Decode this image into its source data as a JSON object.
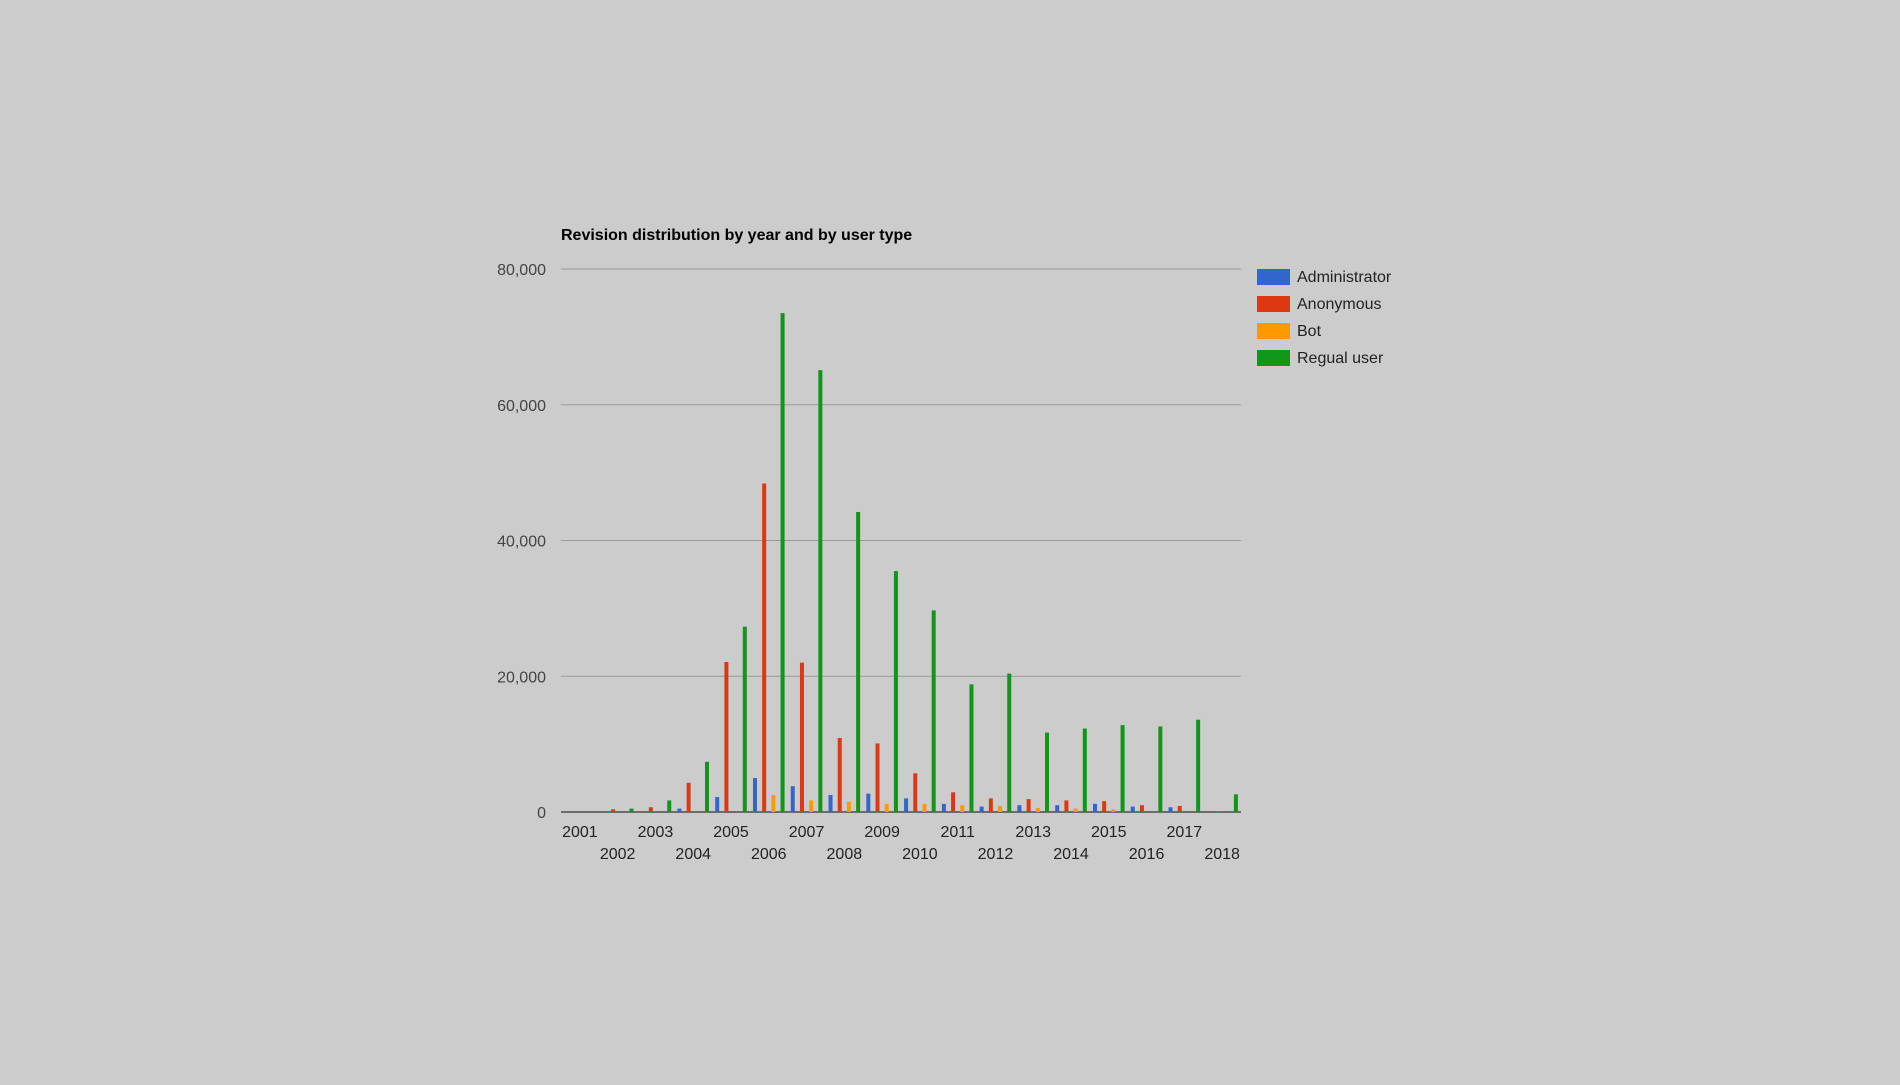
{
  "chart_data": {
    "type": "bar",
    "title": "Revision distribution by year and by user type",
    "xlabel": "",
    "ylabel": "",
    "ylim": [
      0,
      80000
    ],
    "yticks": [
      "0",
      "20,000",
      "40,000",
      "60,000",
      "80,000"
    ],
    "grid": true,
    "legend_position": "right",
    "categories": [
      "2001",
      "2002",
      "2003",
      "2004",
      "2005",
      "2006",
      "2007",
      "2008",
      "2009",
      "2010",
      "2011",
      "2012",
      "2013",
      "2014",
      "2015",
      "2016",
      "2017",
      "2018"
    ],
    "series": [
      {
        "name": "Administrator",
        "color": "#3366cc",
        "values": [
          0,
          0,
          0,
          500,
          2200,
          5000,
          3800,
          2500,
          2700,
          2000,
          1200,
          800,
          1000,
          1000,
          1200,
          800,
          700,
          0
        ]
      },
      {
        "name": "Anonymous",
        "color": "#dc3912",
        "values": [
          0,
          400,
          700,
          4300,
          22100,
          48400,
          22000,
          10900,
          10100,
          5700,
          2900,
          2000,
          1900,
          1700,
          1600,
          1000,
          900,
          100
        ]
      },
      {
        "name": "Bot",
        "color": "#ff9900",
        "values": [
          0,
          0,
          0,
          0,
          0,
          2500,
          1700,
          1500,
          1200,
          1200,
          1000,
          900,
          600,
          500,
          400,
          0,
          0,
          0
        ]
      },
      {
        "name": "Regual user",
        "color": "#109618",
        "values": [
          0,
          500,
          1700,
          7400,
          27300,
          73500,
          65100,
          44200,
          35500,
          29700,
          18800,
          20400,
          11700,
          12300,
          12800,
          12600,
          13600,
          2600
        ]
      }
    ]
  }
}
